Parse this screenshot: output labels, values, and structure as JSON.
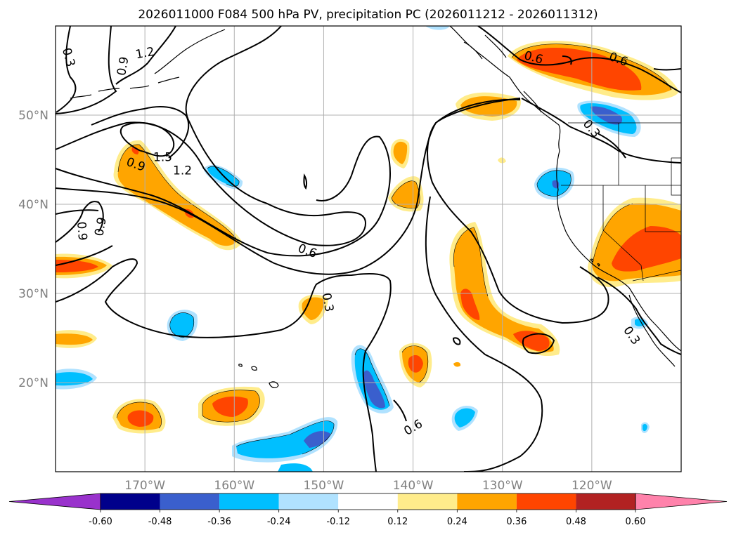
{
  "chart_data": {
    "type": "map",
    "title": "2026011000 F084 500 hPa PV, precipitation PC (2026011212 - 2026011312)",
    "lon_range": [
      -180,
      -110
    ],
    "lat_range": [
      10,
      60
    ],
    "x_ticks": [
      {
        "lon": -170,
        "label": "170°W"
      },
      {
        "lon": -160,
        "label": "160°W"
      },
      {
        "lon": -150,
        "label": "150°W"
      },
      {
        "lon": -140,
        "label": "140°W"
      },
      {
        "lon": -130,
        "label": "130°W"
      },
      {
        "lon": -120,
        "label": "120°W"
      }
    ],
    "y_ticks": [
      {
        "lat": 20,
        "label": "20°N"
      },
      {
        "lat": 30,
        "label": "30°N"
      },
      {
        "lat": 40,
        "label": "40°N"
      },
      {
        "lat": 50,
        "label": "50°N"
      }
    ],
    "grid": true,
    "colorbar": {
      "extend": "both",
      "levels": [
        "-0.60",
        "-0.48",
        "-0.36",
        "-0.24",
        "-0.12",
        "0.12",
        "0.24",
        "0.36",
        "0.48",
        "0.60"
      ],
      "colors": [
        "#9932CC",
        "#00008B",
        "#3A5FCD",
        "#00BFFF",
        "#B0E2FF",
        "#FFFFFF",
        "#FFEC8B",
        "#FFA500",
        "#FF4500",
        "#B22222",
        "#FF82AB"
      ]
    },
    "pv_contour_labels": [
      {
        "value": "1.2",
        "lon": -170.0,
        "lat": 57.0,
        "angle": -10
      },
      {
        "value": "0.3",
        "lon": -178.5,
        "lat": 56.5,
        "angle": 75
      },
      {
        "value": "0.9",
        "lon": -172.5,
        "lat": 55.5,
        "angle": -80
      },
      {
        "value": "1.5",
        "lon": -168.0,
        "lat": 45.3,
        "angle": 0
      },
      {
        "value": "0.9",
        "lon": -171.0,
        "lat": 44.5,
        "angle": 20
      },
      {
        "value": "1.2",
        "lon": -165.8,
        "lat": 43.8,
        "angle": 0
      },
      {
        "value": "0.9",
        "lon": -175.0,
        "lat": 37.5,
        "angle": -80
      },
      {
        "value": "0.9",
        "lon": -177.0,
        "lat": 37.0,
        "angle": 85
      },
      {
        "value": "0.6",
        "lon": -151.8,
        "lat": 34.8,
        "angle": 20
      },
      {
        "value": "0.3",
        "lon": -149.5,
        "lat": 29.0,
        "angle": 80
      },
      {
        "value": "0.6",
        "lon": -126.5,
        "lat": 56.5,
        "angle": 15
      },
      {
        "value": "0.6",
        "lon": -117.0,
        "lat": 56.3,
        "angle": 20
      },
      {
        "value": "0.3",
        "lon": -120.0,
        "lat": 48.5,
        "angle": 50
      },
      {
        "value": "0.3",
        "lon": -115.5,
        "lat": 25.3,
        "angle": 55
      },
      {
        "value": "0.6",
        "lon": -140.0,
        "lat": 15.0,
        "angle": -30
      }
    ]
  }
}
